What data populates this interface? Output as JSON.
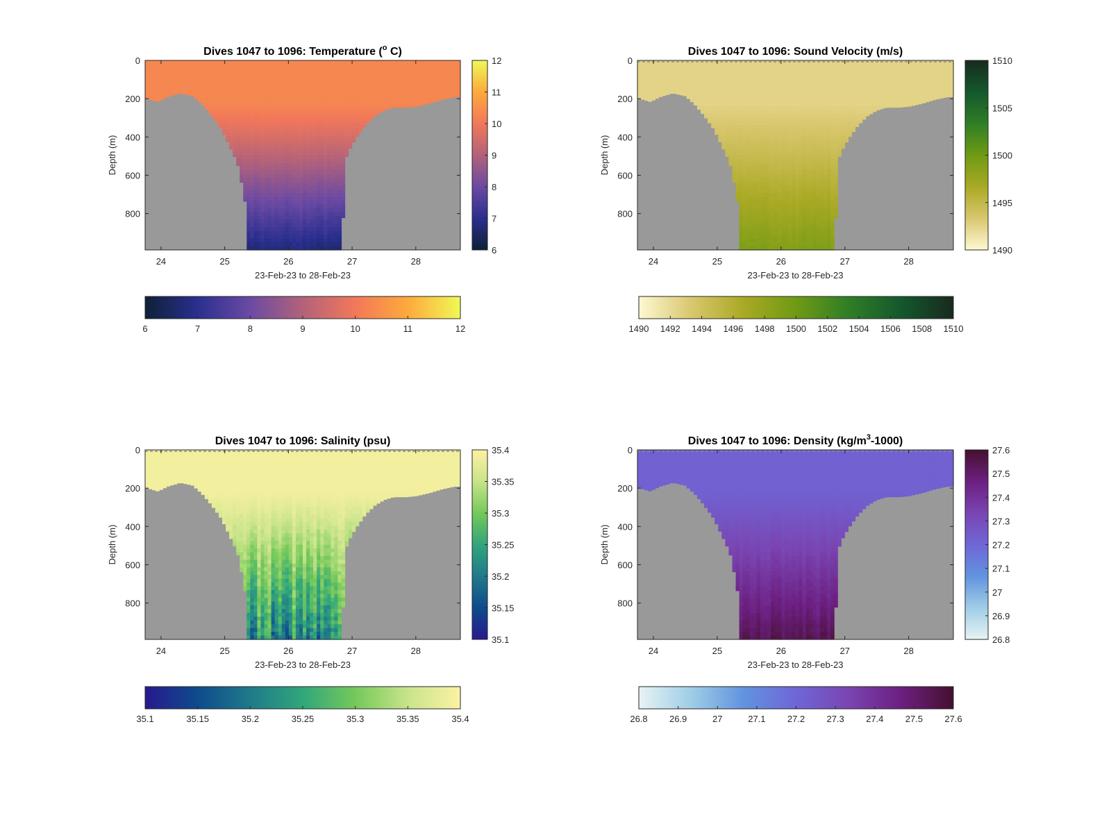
{
  "figure": {
    "background": "#ffffff",
    "land_color": "#999999"
  },
  "chart_data": [
    {
      "type": "heatmap",
      "title_pre": "Dives 1047 to 1096: Temperature (",
      "title_sup": "o",
      "title_post": " C)",
      "xlabel": "23-Feb-23 to 28-Feb-23",
      "ylabel": "Depth (m)",
      "x_ticks": [
        "24",
        "25",
        "26",
        "27",
        "28"
      ],
      "y_ticks": [
        "0",
        "200",
        "400",
        "600",
        "800"
      ],
      "xlim": [
        23.75,
        28.7
      ],
      "ylim": [
        0,
        990
      ],
      "colorbar_ticks": [
        "6",
        "7",
        "8",
        "9",
        "10",
        "11",
        "12"
      ],
      "clim": [
        6,
        12
      ],
      "colormap": [
        "#0d2136",
        "#2a2f8f",
        "#6b4aa3",
        "#b2627a",
        "#f2785a",
        "#fdaa3c",
        "#eff957"
      ],
      "surface_value": 10.3,
      "deep_value": 6.7,
      "noise": 0.15,
      "dashed_surface": false
    },
    {
      "type": "heatmap",
      "title_pre": "Dives 1047 to 1096: Sound Velocity (m/s)",
      "title_sup": "",
      "title_post": "",
      "xlabel": "23-Feb-23 to 28-Feb-23",
      "ylabel": "Depth (m)",
      "x_ticks": [
        "24",
        "25",
        "26",
        "27",
        "28"
      ],
      "y_ticks": [
        "0",
        "200",
        "400",
        "600",
        "800"
      ],
      "xlim": [
        23.75,
        28.7
      ],
      "ylim": [
        0,
        990
      ],
      "colorbar_ticks": [
        "1510",
        "1505",
        "1500",
        "1495",
        "1490"
      ],
      "colorbar_ticks_horizontal": [
        "1490",
        "1492",
        "1494",
        "1496",
        "1498",
        "1500",
        "1502",
        "1504",
        "1506",
        "1508",
        "1510"
      ],
      "clim": [
        1490,
        1510
      ],
      "colormap": [
        "#fdf8d2",
        "#d9c76e",
        "#a9a924",
        "#6f9a14",
        "#2f7e26",
        "#14582c",
        "#182a1e"
      ],
      "surface_value": 1492.5,
      "deep_value": 1499.0,
      "noise": 0.35,
      "dashed_surface": true
    },
    {
      "type": "heatmap",
      "title_pre": "Dives 1047 to 1096: Salinity (psu)",
      "title_sup": "",
      "title_post": "",
      "xlabel": "23-Feb-23 to 28-Feb-23",
      "ylabel": "Depth (m)",
      "x_ticks": [
        "24",
        "25",
        "26",
        "27",
        "28"
      ],
      "y_ticks": [
        "0",
        "200",
        "400",
        "600",
        "800"
      ],
      "xlim": [
        23.75,
        28.7
      ],
      "ylim": [
        0,
        990
      ],
      "colorbar_ticks": [
        "35.4",
        "35.35",
        "35.3",
        "35.25",
        "35.2",
        "35.15",
        "35.1"
      ],
      "colorbar_ticks_horizontal": [
        "35.1",
        "35.15",
        "35.2",
        "35.25",
        "35.3",
        "35.35",
        "35.4"
      ],
      "clim": [
        35.1,
        35.4
      ],
      "colormap": [
        "#28198e",
        "#0e4b8c",
        "#1f7a8a",
        "#31a67b",
        "#75c95a",
        "#c8e48a",
        "#fdf2a4"
      ],
      "surface_value": 35.39,
      "deep_value": 35.22,
      "noise": 0.06,
      "dashed_surface": true
    },
    {
      "type": "heatmap",
      "title_pre": "Dives 1047 to 1096: Density (kg/m",
      "title_sup": "3",
      "title_post": "-1000)",
      "xlabel": "23-Feb-23 to 28-Feb-23",
      "ylabel": "Depth (m)",
      "x_ticks": [
        "24",
        "25",
        "26",
        "27",
        "28"
      ],
      "y_ticks": [
        "0",
        "200",
        "400",
        "600",
        "800"
      ],
      "xlim": [
        23.75,
        28.7
      ],
      "ylim": [
        0,
        990
      ],
      "colorbar_ticks": [
        "27.6",
        "27.5",
        "27.4",
        "27.3",
        "27.2",
        "27.1",
        "27",
        "26.9",
        "26.8"
      ],
      "colorbar_ticks_horizontal": [
        "26.8",
        "26.9",
        "27",
        "27.1",
        "27.2",
        "27.3",
        "27.4",
        "27.5",
        "27.6"
      ],
      "clim": [
        26.8,
        27.6
      ],
      "colormap": [
        "#e7f3f3",
        "#9fcde6",
        "#6193df",
        "#6f66d6",
        "#7a45b2",
        "#6c1f80",
        "#45102f"
      ],
      "surface_value": 27.22,
      "deep_value": 27.54,
      "noise": 0.03,
      "dashed_surface": true
    }
  ],
  "bathymetry": {
    "day": [
      23.75,
      23.95,
      24.1,
      24.3,
      24.5,
      24.65,
      24.8,
      24.95,
      25.05,
      25.15,
      25.22,
      25.32,
      25.33,
      26.85,
      26.87,
      26.95,
      27.05,
      27.2,
      27.35,
      27.5,
      27.65,
      27.85,
      28.0,
      28.2,
      28.4,
      28.6,
      28.7
    ],
    "depth_m": [
      195,
      215,
      190,
      170,
      185,
      230,
      290,
      360,
      430,
      500,
      560,
      740,
      990,
      990,
      540,
      470,
      410,
      340,
      290,
      260,
      245,
      245,
      240,
      225,
      205,
      190,
      190
    ]
  }
}
